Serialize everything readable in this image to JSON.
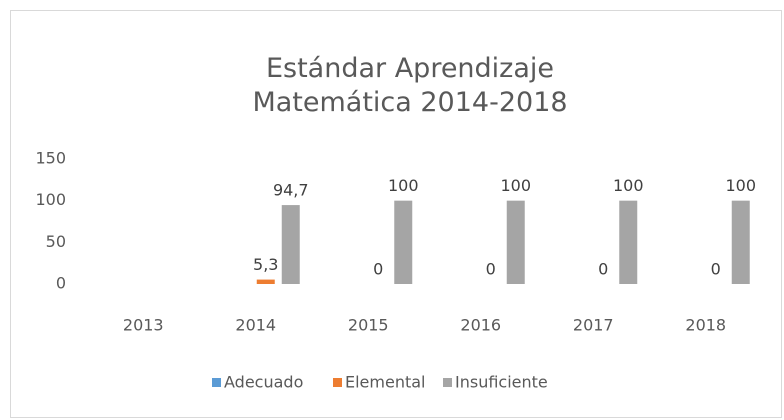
{
  "chart_data": {
    "type": "bar",
    "title": "Estándar Aprendizaje Matemática 2014-2018",
    "categories": [
      "2013",
      "2014",
      "2015",
      "2016",
      "2017",
      "2018"
    ],
    "series": [
      {
        "name": "Adecuado",
        "color": "#5b9bd5",
        "values": [
          null,
          null,
          null,
          null,
          null,
          null
        ]
      },
      {
        "name": "Elemental",
        "color": "#ed7d31",
        "values": [
          null,
          5.3,
          0,
          0,
          0,
          0
        ],
        "value_labels": [
          null,
          "5,3",
          "0",
          "0",
          "0",
          "0"
        ]
      },
      {
        "name": "Insuficiente",
        "color": "#a5a5a5",
        "values": [
          null,
          94.7,
          100,
          100,
          100,
          100
        ],
        "value_labels": [
          null,
          "94,7",
          "100",
          "100",
          "100",
          "100"
        ]
      }
    ],
    "ylim": [
      0,
      150
    ],
    "yticks": [
      0,
      50,
      100,
      150
    ],
    "grid": false,
    "legend": "bottom"
  }
}
